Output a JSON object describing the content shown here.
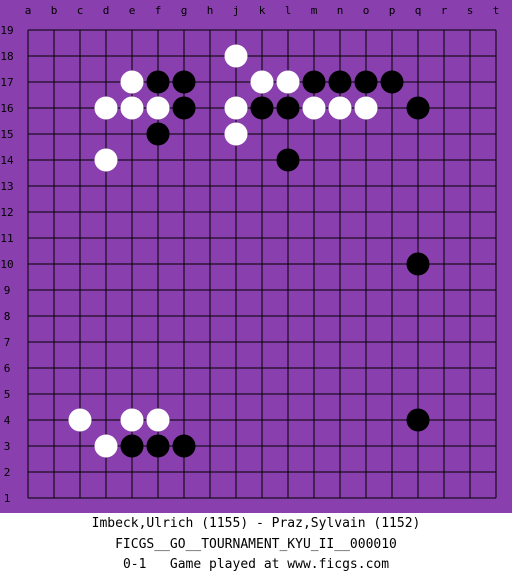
{
  "board": {
    "size": 19,
    "columns": [
      "a",
      "b",
      "c",
      "d",
      "e",
      "f",
      "g",
      "h",
      "j",
      "k",
      "l",
      "m",
      "n",
      "o",
      "p",
      "q",
      "r",
      "s",
      "t"
    ],
    "rows": [
      "19",
      "18",
      "17",
      "16",
      "15",
      "14",
      "13",
      "12",
      "11",
      "10",
      "9",
      "8",
      "7",
      "6",
      "5",
      "4",
      "3",
      "2",
      "1"
    ],
    "colors": {
      "background": "#8a3fae",
      "grid": "#000000",
      "black_stone": "#000000",
      "white_stone": "#ffffff"
    },
    "black_stones": [
      "f17",
      "g17",
      "m17",
      "n17",
      "o17",
      "p17",
      "g16",
      "k16",
      "l16",
      "q16",
      "f15",
      "l14",
      "q10",
      "q4",
      "e3",
      "f3",
      "g3"
    ],
    "white_stones": [
      "j18",
      "e17",
      "k17",
      "l17",
      "d16",
      "e16",
      "f16",
      "j16",
      "m16",
      "n16",
      "o16",
      "j15",
      "d14",
      "c4",
      "e4",
      "f4",
      "d3"
    ]
  },
  "game": {
    "players": "Imbeck,Ulrich (1155) - Praz,Sylvain (1152)",
    "event": "FICGS__GO__TOURNAMENT_KYU_II__000010",
    "result_line": "0-1   Game played at www.ficgs.com"
  }
}
